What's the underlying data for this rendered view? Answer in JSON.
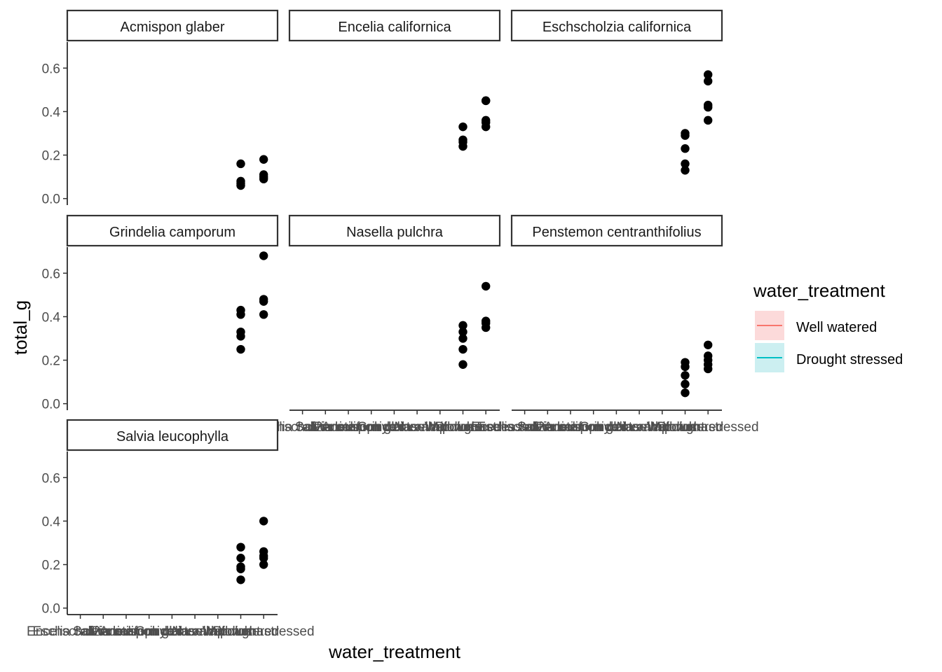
{
  "chart_data": {
    "type": "scatter",
    "xlabel": "water_treatment",
    "ylabel": "total_g",
    "ylim": [
      -0.03,
      0.72
    ],
    "yticks": [
      0.0,
      0.2,
      0.4,
      0.6
    ],
    "ytick_labels": [
      "0.0",
      "0.2",
      "0.4",
      "0.6"
    ],
    "x_categories": [
      "Acmispon glaber",
      "Encelia californica",
      "Eschscholzia californica",
      "Grindelia camporum",
      "Nasella pulchra",
      "Penstemon centranthifolius",
      "Salvia leucophylla",
      "Well watered",
      "Drought stressed"
    ],
    "x_tick_labels": [
      "Encelia californica",
      "Eschscholzia californica",
      "Salvia leucophylla",
      "Acmispon glaber",
      "Penstemon centranthifolius",
      "Grindelia camporum",
      "Nasella pulchra",
      "Well watered",
      "Drought stressed"
    ],
    "point_color": "#000000",
    "legend": {
      "title": "water_treatment",
      "position": "right",
      "items": [
        {
          "label": "Well watered",
          "color": "#F8766D",
          "fill": "#FCDADA"
        },
        {
          "label": "Drought stressed",
          "color": "#00BFC4",
          "fill": "#CCEFF1"
        }
      ]
    },
    "panels": [
      {
        "title": "Acmispon glaber",
        "show_x_axis": false,
        "well_watered": [
          0.16,
          0.08,
          0.07,
          0.06
        ],
        "drought_stressed": [
          0.18,
          0.11,
          0.1,
          0.09
        ]
      },
      {
        "title": "Encelia californica",
        "show_x_axis": false,
        "well_watered": [
          0.33,
          0.27,
          0.26,
          0.24
        ],
        "drought_stressed": [
          0.45,
          0.45,
          0.36,
          0.35,
          0.33
        ]
      },
      {
        "title": "Eschscholzia californica",
        "show_x_axis": false,
        "well_watered": [
          0.3,
          0.29,
          0.23,
          0.16,
          0.13
        ],
        "drought_stressed": [
          0.57,
          0.54,
          0.43,
          0.42,
          0.36
        ]
      },
      {
        "title": "Grindelia camporum",
        "show_x_axis": false,
        "well_watered": [
          0.43,
          0.41,
          0.33,
          0.31,
          0.25
        ],
        "drought_stressed": [
          0.68,
          0.48,
          0.47,
          0.41
        ]
      },
      {
        "title": "Nasella pulchra",
        "show_x_axis": true,
        "well_watered": [
          0.36,
          0.33,
          0.3,
          0.25,
          0.18
        ],
        "drought_stressed": [
          0.54,
          0.38,
          0.37,
          0.35
        ]
      },
      {
        "title": "Penstemon centranthifolius",
        "show_x_axis": true,
        "well_watered": [
          0.19,
          0.17,
          0.13,
          0.09,
          0.05
        ],
        "drought_stressed": [
          0.27,
          0.22,
          0.2,
          0.18,
          0.16
        ]
      },
      {
        "title": "Salvia leucophylla",
        "show_x_axis": true,
        "well_watered": [
          0.28,
          0.23,
          0.19,
          0.18,
          0.13
        ],
        "drought_stressed": [
          0.4,
          0.26,
          0.24,
          0.23,
          0.2
        ]
      }
    ]
  }
}
